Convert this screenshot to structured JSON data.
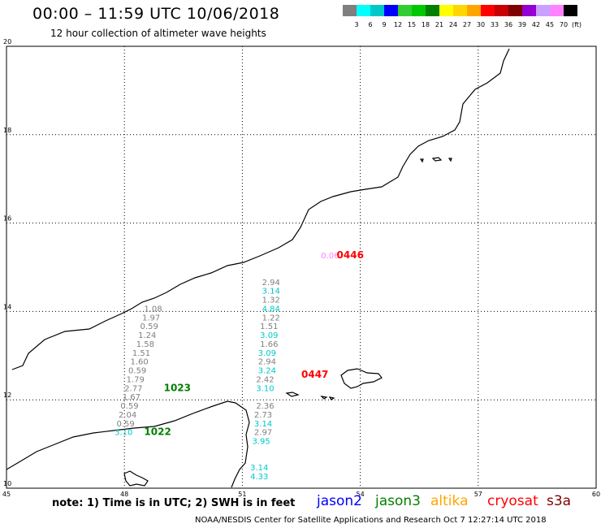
{
  "header": {
    "title": "00:00 – 11:59 UTC 10/06/2018",
    "subtitle": "12 hour collection of altimeter wave heights"
  },
  "scale": {
    "unit": "(ft)",
    "entries": [
      {
        "color": "#7f7f7f",
        "label": "3"
      },
      {
        "color": "#00ffff",
        "label": "6"
      },
      {
        "color": "#00c8c8",
        "label": "9"
      },
      {
        "color": "#0000ff",
        "label": "12"
      },
      {
        "color": "#32cd32",
        "label": "15"
      },
      {
        "color": "#00c800",
        "label": "18"
      },
      {
        "color": "#008000",
        "label": "21"
      },
      {
        "color": "#ffff00",
        "label": "24"
      },
      {
        "color": "#ffd700",
        "label": "27"
      },
      {
        "color": "#ffa500",
        "label": "30"
      },
      {
        "color": "#ff0000",
        "label": "33"
      },
      {
        "color": "#c80000",
        "label": "36"
      },
      {
        "color": "#800000",
        "label": "39"
      },
      {
        "color": "#9400d3",
        "label": "42"
      },
      {
        "color": "#c8a0ff",
        "label": "45"
      },
      {
        "color": "#ff82ff",
        "label": "70"
      },
      {
        "color": "#000000",
        "label": ""
      }
    ]
  },
  "map": {
    "lon_ticks": [
      "45",
      "48",
      "51",
      "54",
      "57",
      "60"
    ],
    "lat_ticks": [
      "10",
      "12",
      "14",
      "16",
      "18",
      "20"
    ],
    "lon_range": [
      45,
      60
    ],
    "lat_range": [
      10,
      20
    ],
    "measurements": [
      {
        "lon": 53.0,
        "lat": 15.2,
        "text": "0.06",
        "color": "#ff82ff"
      },
      {
        "lon": 53.4,
        "lat": 15.2,
        "text": "0446",
        "color": "#ff0000",
        "pass_id": true
      },
      {
        "lon": 51.5,
        "lat": 14.6,
        "text": "2.94",
        "color": "#7f7f7f"
      },
      {
        "lon": 51.5,
        "lat": 14.4,
        "text": "3.14",
        "color": "#00c8c8"
      },
      {
        "lon": 51.5,
        "lat": 14.2,
        "text": "1.32",
        "color": "#7f7f7f"
      },
      {
        "lon": 51.5,
        "lat": 14.0,
        "text": "4.84",
        "color": "#00c8c8"
      },
      {
        "lon": 51.5,
        "lat": 13.8,
        "text": "1.22",
        "color": "#7f7f7f"
      },
      {
        "lon": 51.45,
        "lat": 13.6,
        "text": "1.51",
        "color": "#7f7f7f"
      },
      {
        "lon": 51.45,
        "lat": 13.4,
        "text": "3.09",
        "color": "#00c8c8"
      },
      {
        "lon": 51.45,
        "lat": 13.2,
        "text": "1.66",
        "color": "#7f7f7f"
      },
      {
        "lon": 51.4,
        "lat": 13.0,
        "text": "3.09",
        "color": "#00c8c8"
      },
      {
        "lon": 51.4,
        "lat": 12.8,
        "text": "2.94",
        "color": "#7f7f7f"
      },
      {
        "lon": 51.4,
        "lat": 12.6,
        "text": "3.24",
        "color": "#00c8c8"
      },
      {
        "lon": 51.35,
        "lat": 12.4,
        "text": "2.42",
        "color": "#7f7f7f"
      },
      {
        "lon": 51.35,
        "lat": 12.2,
        "text": "3.10",
        "color": "#00c8c8"
      },
      {
        "lon": 51.35,
        "lat": 11.8,
        "text": "2.36",
        "color": "#7f7f7f"
      },
      {
        "lon": 51.3,
        "lat": 11.6,
        "text": "2.73",
        "color": "#7f7f7f"
      },
      {
        "lon": 51.3,
        "lat": 11.4,
        "text": "3.14",
        "color": "#00c8c8"
      },
      {
        "lon": 51.3,
        "lat": 11.2,
        "text": "2.97",
        "color": "#7f7f7f"
      },
      {
        "lon": 51.25,
        "lat": 11.0,
        "text": "3.95",
        "color": "#00c8c8"
      },
      {
        "lon": 51.2,
        "lat": 10.4,
        "text": "3.14",
        "color": "#00c8c8"
      },
      {
        "lon": 51.2,
        "lat": 10.2,
        "text": "4.33",
        "color": "#00c8c8"
      },
      {
        "lon": 52.5,
        "lat": 12.5,
        "text": "0447",
        "color": "#ff0000",
        "pass_id": true
      },
      {
        "lon": 48.5,
        "lat": 14.0,
        "text": "1.08",
        "color": "#7f7f7f"
      },
      {
        "lon": 48.45,
        "lat": 13.8,
        "text": "1.97",
        "color": "#7f7f7f"
      },
      {
        "lon": 48.4,
        "lat": 13.6,
        "text": "0.59",
        "color": "#7f7f7f"
      },
      {
        "lon": 48.35,
        "lat": 13.4,
        "text": "1.24",
        "color": "#7f7f7f"
      },
      {
        "lon": 48.3,
        "lat": 13.2,
        "text": "1.58",
        "color": "#7f7f7f"
      },
      {
        "lon": 48.2,
        "lat": 13.0,
        "text": "1.51",
        "color": "#7f7f7f"
      },
      {
        "lon": 48.15,
        "lat": 12.8,
        "text": "1.60",
        "color": "#7f7f7f"
      },
      {
        "lon": 48.1,
        "lat": 12.6,
        "text": "0.59",
        "color": "#7f7f7f"
      },
      {
        "lon": 48.05,
        "lat": 12.4,
        "text": "1.79",
        "color": "#7f7f7f"
      },
      {
        "lon": 48.0,
        "lat": 12.2,
        "text": "2.77",
        "color": "#7f7f7f"
      },
      {
        "lon": 49.0,
        "lat": 12.2,
        "text": "1023",
        "color": "#008000",
        "pass_id": true
      },
      {
        "lon": 47.95,
        "lat": 12.0,
        "text": "1.67",
        "color": "#7f7f7f"
      },
      {
        "lon": 47.9,
        "lat": 11.8,
        "text": "0.59",
        "color": "#7f7f7f"
      },
      {
        "lon": 47.85,
        "lat": 11.6,
        "text": "2.04",
        "color": "#7f7f7f"
      },
      {
        "lon": 47.8,
        "lat": 11.4,
        "text": "0.59",
        "color": "#7f7f7f"
      },
      {
        "lon": 47.75,
        "lat": 11.2,
        "text": "3.10",
        "color": "#00c8c8"
      },
      {
        "lon": 48.5,
        "lat": 11.2,
        "text": "1022",
        "color": "#008000",
        "pass_id": true
      }
    ]
  },
  "footer": {
    "note": "note:  1) Time is in UTC;  2) SWH is in feet",
    "legend": [
      {
        "label": "jason2",
        "color": "#0000ff"
      },
      {
        "label": "jason3",
        "color": "#008000"
      },
      {
        "label": "altika",
        "color": "#ffa500"
      },
      {
        "label": "cryosat",
        "color": "#ff0000"
      },
      {
        "label": "s3a",
        "color": "#800000"
      }
    ],
    "credit": "NOAA/NESDIS Center for Satellite Applications and Research    Oct  7 12:27:14 UTC 2018"
  }
}
